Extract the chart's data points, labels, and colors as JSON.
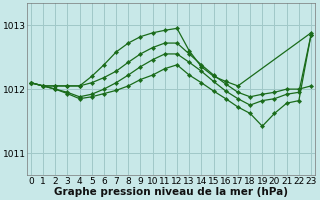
{
  "bg_color": "#c8e8e8",
  "grid_color": "#a0c8c8",
  "line_color": "#1a6b1a",
  "xlabel": "Graphe pression niveau de la mer (hPa)",
  "xlabel_fontsize": 7.5,
  "tick_fontsize": 6.5,
  "ylim": [
    1010.65,
    1013.35
  ],
  "xlim": [
    -0.3,
    23.3
  ],
  "yticks": [
    1011,
    1012,
    1013
  ],
  "xticks": [
    0,
    1,
    2,
    3,
    4,
    5,
    6,
    7,
    8,
    9,
    10,
    11,
    12,
    13,
    14,
    15,
    16,
    17,
    18,
    19,
    20,
    21,
    22,
    23
  ],
  "series": [
    {
      "x": [
        0,
        1,
        2,
        3,
        4,
        5,
        6,
        7,
        8,
        9,
        10,
        11,
        12,
        13,
        14,
        15,
        16,
        17,
        23
      ],
      "y": [
        1012.1,
        1012.05,
        1012.05,
        1012.05,
        1012.05,
        1012.2,
        1012.38,
        1012.58,
        1012.72,
        1012.82,
        1012.88,
        1012.92,
        1012.95,
        1012.6,
        1012.35,
        1012.2,
        1012.12,
        1012.05,
        1012.88
      ]
    },
    {
      "x": [
        0,
        1,
        2,
        3,
        4,
        5,
        6,
        7,
        8,
        9,
        10,
        11,
        12,
        13,
        14,
        15,
        16,
        17,
        18,
        19,
        20,
        21,
        22,
        23
      ],
      "y": [
        1012.1,
        1012.05,
        1012.05,
        1012.05,
        1012.05,
        1012.1,
        1012.18,
        1012.28,
        1012.42,
        1012.55,
        1012.65,
        1012.72,
        1012.72,
        1012.55,
        1012.38,
        1012.22,
        1012.08,
        1011.95,
        1011.88,
        1011.92,
        1011.95,
        1012.0,
        1012.0,
        1012.05
      ]
    },
    {
      "x": [
        0,
        1,
        2,
        3,
        4,
        5,
        6,
        7,
        8,
        9,
        10,
        11,
        12,
        13,
        14,
        15,
        16,
        17,
        18,
        19,
        20,
        21,
        22,
        23
      ],
      "y": [
        1012.1,
        1012.05,
        1012.0,
        1011.95,
        1011.88,
        1011.92,
        1012.0,
        1012.1,
        1012.22,
        1012.35,
        1012.46,
        1012.55,
        1012.55,
        1012.42,
        1012.28,
        1012.12,
        1011.97,
        1011.85,
        1011.75,
        1011.82,
        1011.85,
        1011.92,
        1011.95,
        1012.85
      ]
    },
    {
      "x": [
        0,
        1,
        2,
        3,
        4,
        5,
        6,
        7,
        8,
        9,
        10,
        11,
        12,
        13,
        14,
        15,
        16,
        17,
        18,
        19,
        20,
        21,
        22,
        23
      ],
      "y": [
        1012.1,
        1012.05,
        1012.0,
        1011.93,
        1011.85,
        1011.88,
        1011.93,
        1011.98,
        1012.05,
        1012.15,
        1012.22,
        1012.32,
        1012.38,
        1012.22,
        1012.1,
        1011.97,
        1011.85,
        1011.72,
        1011.62,
        1011.42,
        1011.62,
        1011.78,
        1011.82,
        1012.85
      ]
    }
  ]
}
